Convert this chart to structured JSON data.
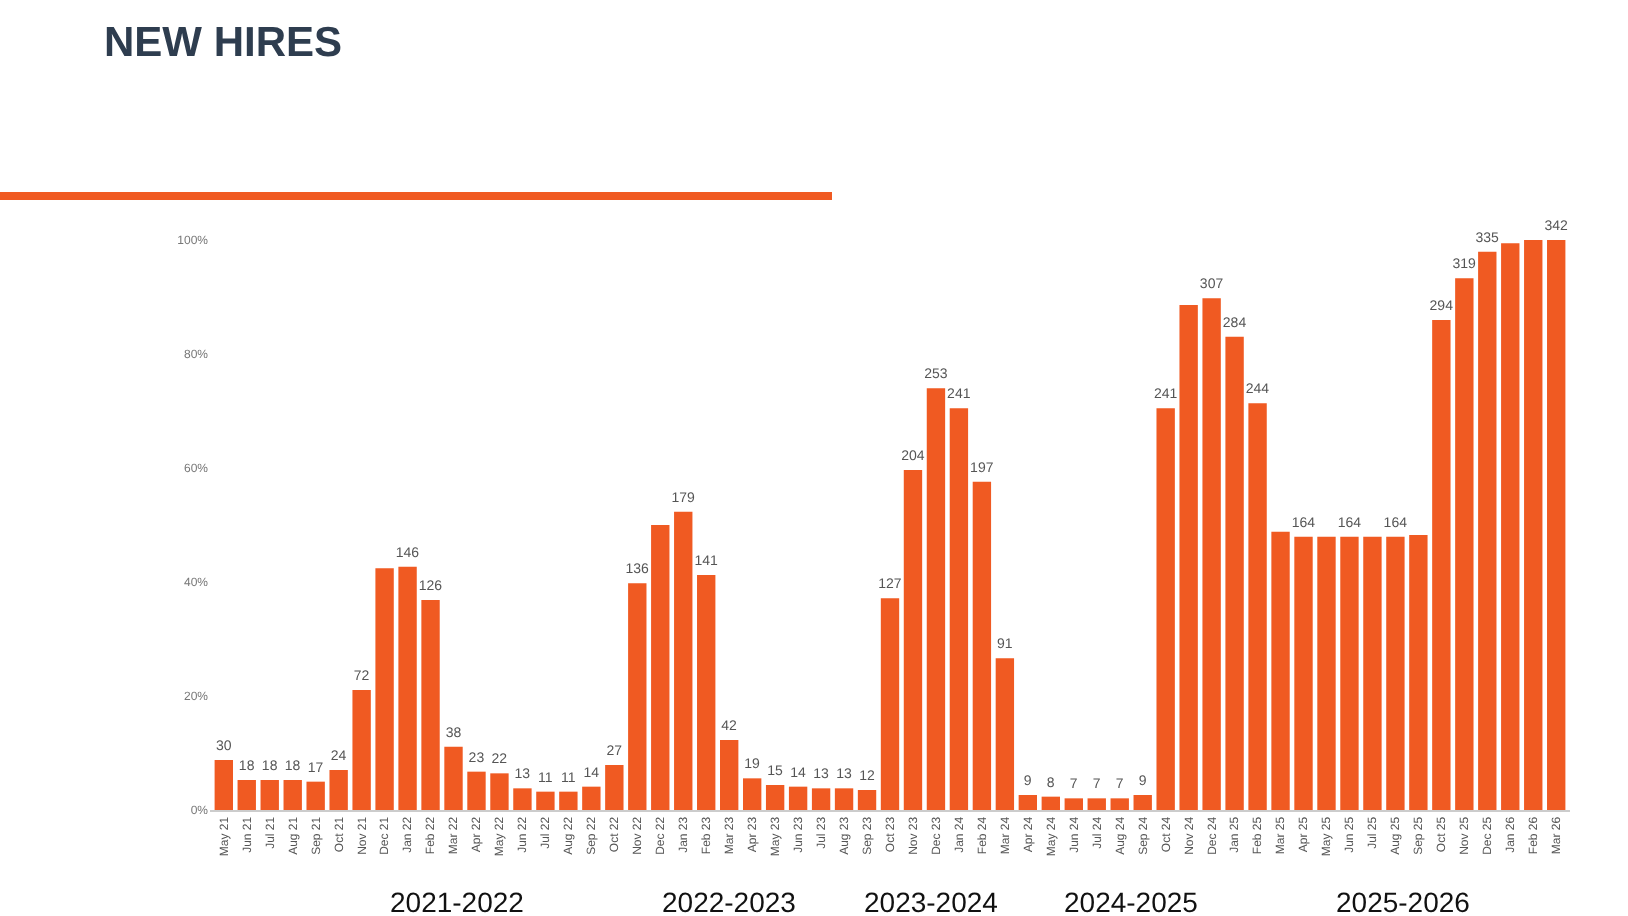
{
  "chart_data": {
    "type": "bar",
    "title": "NEW HIRES",
    "categories": [
      "May 21",
      "Jun 21",
      "Jul 21",
      "Aug 21",
      "Sep 21",
      "Oct 21",
      "Nov 21",
      "Dec 21",
      "Jan 22",
      "Feb 22",
      "Mar 22",
      "Apr 22",
      "May 22",
      "Jun 22",
      "Jul 22",
      "Aug 22",
      "Sep 22",
      "Oct 22",
      "Nov 22",
      "Dec 22",
      "Jan 23",
      "Feb 23",
      "Mar 23",
      "Apr 23",
      "May 23",
      "Jun 23",
      "Jul 23",
      "Aug 23",
      "Sep 23",
      "Oct 23",
      "Nov 23",
      "Dec 23",
      "Jan 24",
      "Feb 24",
      "Mar 24",
      "Apr 24",
      "May 24",
      "Jun 24",
      "Jul 24",
      "Aug 24",
      "Sep 24",
      "Oct 24",
      "Nov 24",
      "Dec 24",
      "Jan 25",
      "Feb 25",
      "Mar 25",
      "Apr 25",
      "May 25",
      "Jun 25",
      "Jul 25",
      "Aug 25",
      "Sep 25",
      "Oct 25",
      "Nov 25",
      "Dec 25",
      "Jan 26",
      "Feb 26",
      "Mar 26"
    ],
    "series": [
      {
        "axis": "y2",
        "color": "#f05a22",
        "values": [
          30,
          18,
          18,
          18,
          17,
          24,
          72,
          145,
          146,
          126,
          38,
          23,
          22,
          13,
          11,
          11,
          14,
          27,
          136,
          171,
          179,
          141,
          42,
          19,
          15,
          14,
          13,
          13,
          12,
          127,
          204,
          253,
          241,
          197,
          91,
          9,
          8,
          7,
          7,
          7,
          9,
          241,
          303,
          307,
          284,
          244,
          167,
          164,
          164,
          164,
          164,
          164,
          165,
          294,
          319,
          335,
          340,
          342,
          342
        ],
        "value_labels": [
          "30",
          "18",
          "18",
          "18",
          "17",
          "24",
          "72",
          null,
          "146",
          "126",
          "38",
          "23",
          "22",
          "13",
          "11",
          "11",
          "14",
          "27",
          "136",
          null,
          "179",
          "141",
          "42",
          "19",
          "15",
          "14",
          "13",
          "13",
          "12",
          "127",
          "204",
          "253",
          "241",
          "197",
          "91",
          "9",
          "8",
          "7",
          "7",
          "7",
          "9",
          "241",
          null,
          "307",
          "284",
          "244",
          null,
          "164",
          null,
          "164",
          null,
          "164",
          null,
          "294",
          "319",
          "335",
          null,
          null,
          "342"
        ]
      }
    ],
    "y2lim": [
      0,
      342
    ],
    "ylim": [
      0,
      100
    ],
    "yticks": [
      {
        "value": 0,
        "label": "0%"
      },
      {
        "value": 20,
        "label": "20%"
      },
      {
        "value": 40,
        "label": "40%"
      },
      {
        "value": 60,
        "label": "60%"
      },
      {
        "value": 80,
        "label": "80%"
      },
      {
        "value": 100,
        "label": "100%"
      }
    ],
    "grid": false,
    "annotations": [
      "2021-2022",
      "2022-2023",
      "2023-2024",
      "2024-2025",
      "2025-2026"
    ]
  }
}
